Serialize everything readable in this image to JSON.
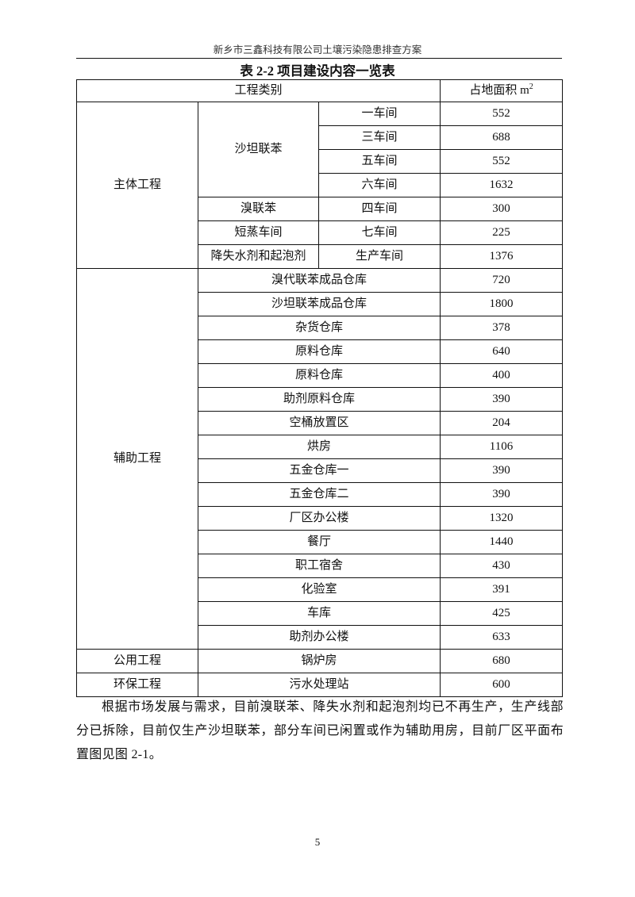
{
  "header": "新乡市三鑫科技有限公司土壤污染隐患排查方案",
  "table_title": "表 2-2 项目建设内容一览表",
  "table": {
    "headers": {
      "category": "工程类别",
      "area": "占地面积 m",
      "area_sup": "2"
    },
    "main": {
      "label": "主体工程",
      "groups": [
        {
          "name": "沙坦联苯",
          "rows": [
            [
              "一车间",
              "552"
            ],
            [
              "三车间",
              "688"
            ],
            [
              "五车间",
              "552"
            ],
            [
              "六车间",
              "1632"
            ]
          ]
        },
        {
          "name": "溴联苯",
          "rows": [
            [
              "四车间",
              "300"
            ]
          ]
        },
        {
          "name": "短蒸车间",
          "rows": [
            [
              "七车间",
              "225"
            ]
          ]
        },
        {
          "name": "降失水剂和起泡剂",
          "rows": [
            [
              "生产车间",
              "1376"
            ]
          ]
        }
      ]
    },
    "aux": {
      "label": "辅助工程",
      "rows": [
        [
          "溴代联苯成品仓库",
          "720"
        ],
        [
          "沙坦联苯成品仓库",
          "1800"
        ],
        [
          "杂货仓库",
          "378"
        ],
        [
          "原料仓库",
          "640"
        ],
        [
          "原料仓库",
          "400"
        ],
        [
          "助剂原料仓库",
          "390"
        ],
        [
          "空桶放置区",
          "204"
        ],
        [
          "烘房",
          "1106"
        ],
        [
          "五金仓库一",
          "390"
        ],
        [
          "五金仓库二",
          "390"
        ],
        [
          "厂区办公楼",
          "1320"
        ],
        [
          "餐厅",
          "1440"
        ],
        [
          "职工宿舍",
          "430"
        ],
        [
          "化验室",
          "391"
        ],
        [
          "车库",
          "425"
        ],
        [
          "助剂办公楼",
          "633"
        ]
      ]
    },
    "others": [
      {
        "label": "公用工程",
        "name": "锅炉房",
        "area": "680"
      },
      {
        "label": "环保工程",
        "name": "污水处理站",
        "area": "600"
      }
    ]
  },
  "paragraph": "根据市场发展与需求，目前溴联苯、降失水剂和起泡剂均已不再生产，生产线部分已拆除，目前仅生产沙坦联苯，部分车间已闲置或作为辅助用房，目前厂区平面布置图见图 2-1。",
  "page_number": "5"
}
